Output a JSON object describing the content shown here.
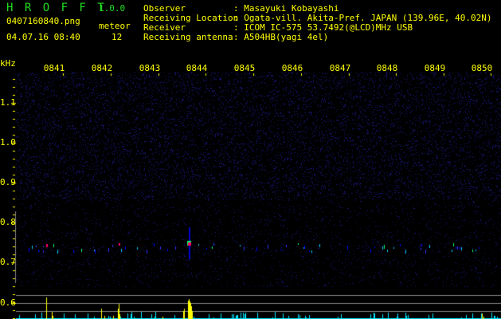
{
  "header": {
    "app_name": "H R O F F T",
    "version": "1.0.0",
    "filename": "0407160840.png",
    "datetime": "04.07.16 08:40",
    "meteor_label": "meteor",
    "meteor_count": "12"
  },
  "info": [
    {
      "label": "Observer",
      "value": ": Masayuki Kobayashi"
    },
    {
      "label": "Receiving Location",
      "value": ": Ogata-vill. Akita-Pref. JAPAN (139.96E, 40.02N)"
    },
    {
      "label": "Receiver",
      "value": ": ICOM IC-575 53.7492(@LCD)MHz USB"
    },
    {
      "label": "Receiving antenna",
      "value": ": A504HB(yagi 4el)"
    }
  ],
  "spectrogram": {
    "y_unit": "kHz",
    "y_ticks": [
      "1.1",
      "1.0",
      "0.9",
      "0.8",
      "0.7",
      "0.6"
    ],
    "time_ticks": [
      "0841",
      "0842",
      "0843",
      "0844",
      "0845",
      "0846",
      "0847",
      "0848",
      "0849",
      "0850"
    ],
    "colors": {
      "text": "#ffff00",
      "title": "#22dd22",
      "noise": "#1a1a7a",
      "echo": "#ff0066",
      "bar_main": "#ffff00",
      "bar_secondary": "#00e5ff",
      "grid": "#888888"
    }
  }
}
